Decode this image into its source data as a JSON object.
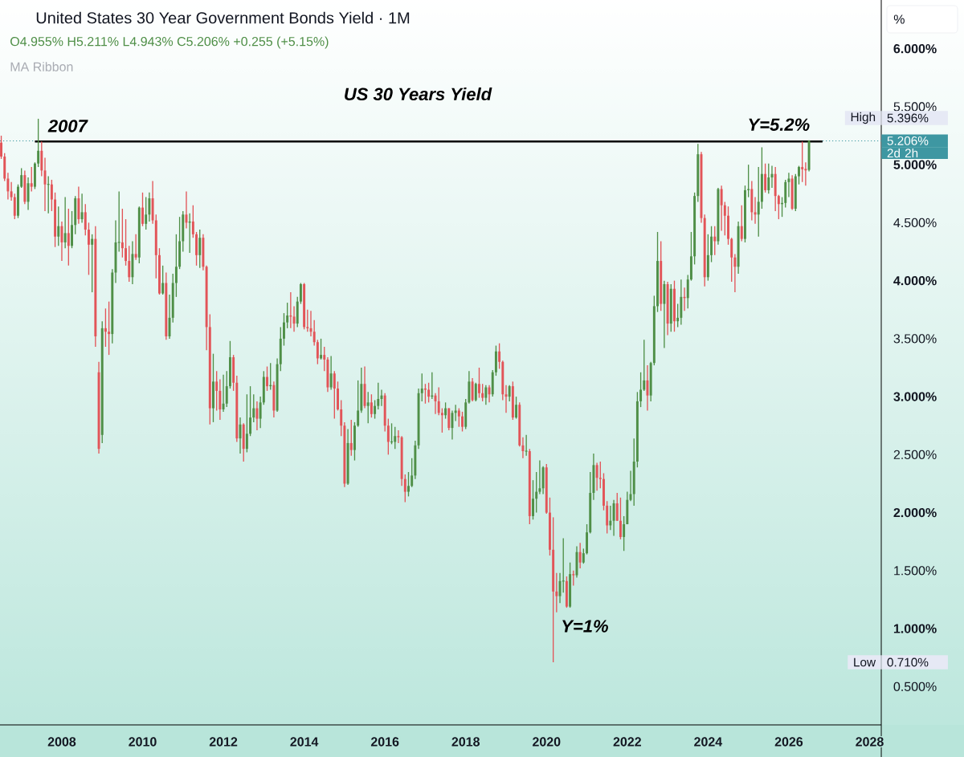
{
  "chart_data": {
    "type": "candlestick",
    "title": "United States 30 Year Government Bonds Yield · 1M",
    "subtitle": "US 30 Years Yield",
    "ylabel": "%",
    "annotations": [
      "O4.955% H5.211% L4.943% C5.206% +0.255 (+5.15%)",
      "MA Ribbon",
      {
        "text": "2007",
        "x": "2007-06",
        "y": 5.396
      },
      {
        "text": "Y=5.2%",
        "x": "2025-10",
        "y": 5.2
      },
      "Y=1%",
      "High",
      "5.396%",
      "Low",
      "0.710%",
      "2d 2h"
    ],
    "xlim": [
      "2006-06-20",
      "2028-04-15"
    ],
    "ylim": [
      0.17,
      6.42
    ],
    "xticks": [
      "2008",
      "2010",
      "2012",
      "2014",
      "2016",
      "2018",
      "2020",
      "2022",
      "2024",
      "2026",
      "2028"
    ],
    "yticks": [
      {
        "value": 0.5,
        "label": "0.500%"
      },
      {
        "value": 1,
        "label": "1.000%"
      },
      {
        "value": 1.5,
        "label": "1.500%"
      },
      {
        "value": 2,
        "label": "2.000%"
      },
      {
        "value": 2.5,
        "label": "2.500%"
      },
      {
        "value": 3,
        "label": "3.000%"
      },
      {
        "value": 3.5,
        "label": "3.500%"
      },
      {
        "value": 4,
        "label": "4.000%"
      },
      {
        "value": 4.5,
        "label": "4.500%"
      },
      {
        "value": 5,
        "label": "5.000%"
      },
      {
        "value": 5.5,
        "label": "5.500%"
      },
      {
        "value": 6,
        "label": "6.000%"
      }
    ],
    "ref_lines": [
      {
        "axis": "y",
        "value": 5.206,
        "label": "5.206%",
        "color": "#3e97a2",
        "line_style": "dotted"
      }
    ],
    "series": [
      {
        "x": [
          "2006-07",
          "2006-08",
          "2006-09",
          "2006-10",
          "2006-11",
          "2006-12",
          "2007-01",
          "2007-02",
          "2007-03",
          "2007-04",
          "2007-05",
          "2007-06",
          "2007-07",
          "2007-08",
          "2007-09",
          "2007-10",
          "2007-11",
          "2007-12",
          "2008-01",
          "2008-02",
          "2008-03",
          "2008-04",
          "2008-05",
          "2008-06",
          "2008-07",
          "2008-08",
          "2008-09",
          "2008-10",
          "2008-11",
          "2008-12",
          "2009-01",
          "2009-02",
          "2009-03",
          "2009-04",
          "2009-05",
          "2009-06",
          "2009-07",
          "2009-08",
          "2009-09",
          "2009-10",
          "2009-11",
          "2009-12",
          "2010-01",
          "2010-02",
          "2010-03",
          "2010-04",
          "2010-05",
          "2010-06",
          "2010-07",
          "2010-08",
          "2010-09",
          "2010-10",
          "2010-11",
          "2010-12",
          "2011-01",
          "2011-02",
          "2011-03",
          "2011-04",
          "2011-05",
          "2011-06",
          "2011-07",
          "2011-08",
          "2011-09",
          "2011-10",
          "2011-11",
          "2011-12",
          "2012-01",
          "2012-02",
          "2012-03",
          "2012-04",
          "2012-05",
          "2012-06",
          "2012-07",
          "2012-08",
          "2012-09",
          "2012-10",
          "2012-11",
          "2012-12",
          "2013-01",
          "2013-02",
          "2013-03",
          "2013-04",
          "2013-05",
          "2013-06",
          "2013-07",
          "2013-08",
          "2013-09",
          "2013-10",
          "2013-11",
          "2013-12",
          "2014-01",
          "2014-02",
          "2014-03",
          "2014-04",
          "2014-05",
          "2014-06",
          "2014-07",
          "2014-08",
          "2014-09",
          "2014-10",
          "2014-11",
          "2014-12",
          "2015-01",
          "2015-02",
          "2015-03",
          "2015-04",
          "2015-05",
          "2015-06",
          "2015-07",
          "2015-08",
          "2015-09",
          "2015-10",
          "2015-11",
          "2015-12",
          "2016-01",
          "2016-02",
          "2016-03",
          "2016-04",
          "2016-05",
          "2016-06",
          "2016-07",
          "2016-08",
          "2016-09",
          "2016-10",
          "2016-11",
          "2016-12",
          "2017-01",
          "2017-02",
          "2017-03",
          "2017-04",
          "2017-05",
          "2017-06",
          "2017-07",
          "2017-08",
          "2017-09",
          "2017-10",
          "2017-11",
          "2017-12",
          "2018-01",
          "2018-02",
          "2018-03",
          "2018-04",
          "2018-05",
          "2018-06",
          "2018-07",
          "2018-08",
          "2018-09",
          "2018-10",
          "2018-11",
          "2018-12",
          "2019-01",
          "2019-02",
          "2019-03",
          "2019-04",
          "2019-05",
          "2019-06",
          "2019-07",
          "2019-08",
          "2019-09",
          "2019-10",
          "2019-11",
          "2019-12",
          "2020-01",
          "2020-02",
          "2020-03",
          "2020-04",
          "2020-05",
          "2020-06",
          "2020-07",
          "2020-08",
          "2020-09",
          "2020-10",
          "2020-11",
          "2020-12",
          "2021-01",
          "2021-02",
          "2021-03",
          "2021-04",
          "2021-05",
          "2021-06",
          "2021-07",
          "2021-08",
          "2021-09",
          "2021-10",
          "2021-11",
          "2021-12",
          "2022-01",
          "2022-02",
          "2022-03",
          "2022-04",
          "2022-05",
          "2022-06",
          "2022-07",
          "2022-08",
          "2022-09",
          "2022-10",
          "2022-11",
          "2022-12",
          "2023-01",
          "2023-02",
          "2023-03",
          "2023-04",
          "2023-05",
          "2023-06",
          "2023-07",
          "2023-08",
          "2023-09",
          "2023-10",
          "2023-11",
          "2023-12",
          "2024-01",
          "2024-02",
          "2024-03",
          "2024-04",
          "2024-05",
          "2024-06",
          "2024-07",
          "2024-08",
          "2024-09",
          "2024-10",
          "2024-11",
          "2024-12",
          "2025-01",
          "2025-02",
          "2025-03",
          "2025-04",
          "2025-05",
          "2025-06",
          "2025-07",
          "2025-08",
          "2025-09",
          "2025-10",
          "2025-11",
          "2025-12",
          "2026-01",
          "2026-02",
          "2026-03",
          "2026-04",
          "2026-05",
          "2026-06",
          "2026-07"
        ],
        "ohlc": [
          [
            5.19,
            5.25,
            5.05,
            5.07
          ],
          [
            5.07,
            5.1,
            4.86,
            4.88
          ],
          [
            4.88,
            4.93,
            4.7,
            4.77
          ],
          [
            4.77,
            4.85,
            4.69,
            4.72
          ],
          [
            4.72,
            4.75,
            4.53,
            4.56
          ],
          [
            4.56,
            4.83,
            4.54,
            4.81
          ],
          [
            4.81,
            4.97,
            4.8,
            4.91
          ],
          [
            4.91,
            4.95,
            4.66,
            4.68
          ],
          [
            4.68,
            4.89,
            4.61,
            4.84
          ],
          [
            4.84,
            4.98,
            4.77,
            4.81
          ],
          [
            4.81,
            5.02,
            4.79,
            5.01
          ],
          [
            5.01,
            5.396,
            4.98,
            5.12
          ],
          [
            5.12,
            5.2,
            4.9,
            4.95
          ],
          [
            4.95,
            5.06,
            4.6,
            4.83
          ],
          [
            4.83,
            4.9,
            4.58,
            4.83
          ],
          [
            4.83,
            4.87,
            4.6,
            4.7
          ],
          [
            4.7,
            4.76,
            4.29,
            4.38
          ],
          [
            4.38,
            4.64,
            4.3,
            4.47
          ],
          [
            4.47,
            4.51,
            4.17,
            4.33
          ],
          [
            4.33,
            4.72,
            4.28,
            4.41
          ],
          [
            4.41,
            4.62,
            4.13,
            4.3
          ],
          [
            4.3,
            4.6,
            4.28,
            4.48
          ],
          [
            4.48,
            4.73,
            4.4,
            4.71
          ],
          [
            4.71,
            4.81,
            4.49,
            4.53
          ],
          [
            4.53,
            4.75,
            4.5,
            4.59
          ],
          [
            4.59,
            4.66,
            4.39,
            4.44
          ],
          [
            4.44,
            4.5,
            4.05,
            4.31
          ],
          [
            4.31,
            4.4,
            3.9,
            4.36
          ],
          [
            4.36,
            4.47,
            3.43,
            3.52
          ],
          [
            3.21,
            3.3,
            2.51,
            2.55
          ],
          [
            2.67,
            3.65,
            2.6,
            3.59
          ],
          [
            3.59,
            3.76,
            3.43,
            3.56
          ],
          [
            3.56,
            3.82,
            3.36,
            3.54
          ],
          [
            3.54,
            4.1,
            3.46,
            4.07
          ],
          [
            4.07,
            4.52,
            3.98,
            4.33
          ],
          [
            4.33,
            4.77,
            4.25,
            4.33
          ],
          [
            4.33,
            4.62,
            4.2,
            4.28
          ],
          [
            4.28,
            4.53,
            4.13,
            4.17
          ],
          [
            4.17,
            4.3,
            3.99,
            4.03
          ],
          [
            4.03,
            4.34,
            3.97,
            4.23
          ],
          [
            4.23,
            4.4,
            4.18,
            4.2
          ],
          [
            4.2,
            4.64,
            4.15,
            4.63
          ],
          [
            4.63,
            4.76,
            4.47,
            4.49
          ],
          [
            4.49,
            4.72,
            4.44,
            4.57
          ],
          [
            4.57,
            4.76,
            4.51,
            4.71
          ],
          [
            4.71,
            4.86,
            4.49,
            4.52
          ],
          [
            4.52,
            4.57,
            4.02,
            4.22
          ],
          [
            4.22,
            4.28,
            3.88,
            3.89
          ],
          [
            3.89,
            4.13,
            3.88,
            3.98
          ],
          [
            3.98,
            4.07,
            3.49,
            3.52
          ],
          [
            3.52,
            3.88,
            3.5,
            3.68
          ],
          [
            3.68,
            4.06,
            3.64,
            3.98
          ],
          [
            3.98,
            4.4,
            3.86,
            4.12
          ],
          [
            4.12,
            4.55,
            4.1,
            4.34
          ],
          [
            4.34,
            4.6,
            4.25,
            4.57
          ],
          [
            4.57,
            4.77,
            4.45,
            4.5
          ],
          [
            4.5,
            4.58,
            4.24,
            4.51
          ],
          [
            4.51,
            4.65,
            4.37,
            4.4
          ],
          [
            4.4,
            4.42,
            4.13,
            4.22
          ],
          [
            4.22,
            4.44,
            4.11,
            4.37
          ],
          [
            4.37,
            4.4,
            4.09,
            4.12
          ],
          [
            4.12,
            4.13,
            3.4,
            3.6
          ],
          [
            3.6,
            3.71,
            2.76,
            2.9
          ],
          [
            2.9,
            3.37,
            2.78,
            3.13
          ],
          [
            3.13,
            3.22,
            2.88,
            3.05
          ],
          [
            3.05,
            3.15,
            2.8,
            2.89
          ],
          [
            2.89,
            3.19,
            2.87,
            2.94
          ],
          [
            2.94,
            3.22,
            2.91,
            3.09
          ],
          [
            3.09,
            3.48,
            3.07,
            3.34
          ],
          [
            3.34,
            3.36,
            3.05,
            3.12
          ],
          [
            3.12,
            3.18,
            2.61,
            2.64
          ],
          [
            2.64,
            2.82,
            2.51,
            2.76
          ],
          [
            2.76,
            2.77,
            2.44,
            2.55
          ],
          [
            2.55,
            3.02,
            2.52,
            2.68
          ],
          [
            2.68,
            3.09,
            2.66,
            2.82
          ],
          [
            2.82,
            3.02,
            2.78,
            2.9
          ],
          [
            2.9,
            2.96,
            2.71,
            2.81
          ],
          [
            2.81,
            3.0,
            2.73,
            2.95
          ],
          [
            2.95,
            3.22,
            2.93,
            3.17
          ],
          [
            3.17,
            3.26,
            3.05,
            3.09
          ],
          [
            3.09,
            3.29,
            3.06,
            3.1
          ],
          [
            3.1,
            3.13,
            2.82,
            2.88
          ],
          [
            2.88,
            3.33,
            2.87,
            3.28
          ],
          [
            3.28,
            3.6,
            3.22,
            3.5
          ],
          [
            3.5,
            3.72,
            3.44,
            3.64
          ],
          [
            3.64,
            3.81,
            3.59,
            3.7
          ],
          [
            3.7,
            3.9,
            3.59,
            3.69
          ],
          [
            3.69,
            3.78,
            3.56,
            3.63
          ],
          [
            3.63,
            3.86,
            3.6,
            3.82
          ],
          [
            3.82,
            3.98,
            3.8,
            3.97
          ],
          [
            3.97,
            3.98,
            3.58,
            3.6
          ],
          [
            3.6,
            3.75,
            3.56,
            3.59
          ],
          [
            3.59,
            3.74,
            3.52,
            3.56
          ],
          [
            3.56,
            3.66,
            3.44,
            3.47
          ],
          [
            3.47,
            3.49,
            3.28,
            3.33
          ],
          [
            3.33,
            3.5,
            3.32,
            3.36
          ],
          [
            3.36,
            3.43,
            3.22,
            3.32
          ],
          [
            3.32,
            3.34,
            3.04,
            3.08
          ],
          [
            3.08,
            3.35,
            3.06,
            3.2
          ],
          [
            3.2,
            3.22,
            2.81,
            3.07
          ],
          [
            3.07,
            3.13,
            2.88,
            2.89
          ],
          [
            2.89,
            2.97,
            2.66,
            2.75
          ],
          [
            2.75,
            2.78,
            2.22,
            2.25
          ],
          [
            2.25,
            2.72,
            2.24,
            2.6
          ],
          [
            2.6,
            2.8,
            2.49,
            2.54
          ],
          [
            2.54,
            2.78,
            2.45,
            2.75
          ],
          [
            2.75,
            3.14,
            2.74,
            2.88
          ],
          [
            2.88,
            3.25,
            2.86,
            3.11
          ],
          [
            3.11,
            3.26,
            2.9,
            2.92
          ],
          [
            2.92,
            3.04,
            2.77,
            2.95
          ],
          [
            2.95,
            3.02,
            2.82,
            2.85
          ],
          [
            2.85,
            2.97,
            2.81,
            2.92
          ],
          [
            2.92,
            3.12,
            2.89,
            2.98
          ],
          [
            2.98,
            3.06,
            2.92,
            3.01
          ],
          [
            3.01,
            3.03,
            2.7,
            2.75
          ],
          [
            2.75,
            2.81,
            2.5,
            2.61
          ],
          [
            2.61,
            2.77,
            2.59,
            2.61
          ],
          [
            2.61,
            2.74,
            2.55,
            2.66
          ],
          [
            2.66,
            2.71,
            2.6,
            2.65
          ],
          [
            2.65,
            2.66,
            2.23,
            2.29
          ],
          [
            2.29,
            2.33,
            2.09,
            2.18
          ],
          [
            2.18,
            2.35,
            2.14,
            2.23
          ],
          [
            2.23,
            2.47,
            2.22,
            2.32
          ],
          [
            2.32,
            2.62,
            2.29,
            2.58
          ],
          [
            2.58,
            3.07,
            2.55,
            3.03
          ],
          [
            3.03,
            3.2,
            2.96,
            3.07
          ],
          [
            3.07,
            3.11,
            2.94,
            3.06
          ],
          [
            3.06,
            3.12,
            2.95,
            3.0
          ],
          [
            3.0,
            3.21,
            2.98,
            3.01
          ],
          [
            3.01,
            3.03,
            2.85,
            2.96
          ],
          [
            2.96,
            3.08,
            2.84,
            2.86
          ],
          [
            2.86,
            2.9,
            2.69,
            2.84
          ],
          [
            2.84,
            2.95,
            2.81,
            2.9
          ],
          [
            2.9,
            2.9,
            2.71,
            2.73
          ],
          [
            2.73,
            2.88,
            2.63,
            2.86
          ],
          [
            2.86,
            2.93,
            2.79,
            2.88
          ],
          [
            2.88,
            2.9,
            2.74,
            2.83
          ],
          [
            2.83,
            2.87,
            2.7,
            2.74
          ],
          [
            2.74,
            2.98,
            2.72,
            2.95
          ],
          [
            2.95,
            3.22,
            2.94,
            3.13
          ],
          [
            3.13,
            3.16,
            2.96,
            2.97
          ],
          [
            2.97,
            3.12,
            2.96,
            3.11
          ],
          [
            3.11,
            3.25,
            2.99,
            3.03
          ],
          [
            3.03,
            3.11,
            2.96,
            2.99
          ],
          [
            2.99,
            3.1,
            2.93,
            3.08
          ],
          [
            3.08,
            3.1,
            2.95,
            3.02
          ],
          [
            3.02,
            3.23,
            3.0,
            3.21
          ],
          [
            3.21,
            3.44,
            3.18,
            3.39
          ],
          [
            3.39,
            3.46,
            3.24,
            3.3
          ],
          [
            3.3,
            3.31,
            2.97,
            3.02
          ],
          [
            3.02,
            3.1,
            2.86,
            3.0
          ],
          [
            3.0,
            3.1,
            2.96,
            3.09
          ],
          [
            3.09,
            3.13,
            2.8,
            2.82
          ],
          [
            2.82,
            3.0,
            2.81,
            2.93
          ],
          [
            2.93,
            2.95,
            2.57,
            2.58
          ],
          [
            2.58,
            2.65,
            2.47,
            2.53
          ],
          [
            2.53,
            2.67,
            2.49,
            2.53
          ],
          [
            2.53,
            2.55,
            1.9,
            1.97
          ],
          [
            1.97,
            2.28,
            1.94,
            2.12
          ],
          [
            2.12,
            2.35,
            2.0,
            2.18
          ],
          [
            2.18,
            2.45,
            2.16,
            2.21
          ],
          [
            2.21,
            2.4,
            2.16,
            2.39
          ],
          [
            2.39,
            2.42,
            1.99,
            2.0
          ],
          [
            2.0,
            2.13,
            1.63,
            1.68
          ],
          [
            1.68,
            1.96,
            0.71,
            1.32
          ],
          [
            1.32,
            1.48,
            1.14,
            1.28
          ],
          [
            1.28,
            1.48,
            1.22,
            1.41
          ],
          [
            1.41,
            1.78,
            1.31,
            1.41
          ],
          [
            1.41,
            1.45,
            1.18,
            1.19
          ],
          [
            1.19,
            1.57,
            1.18,
            1.47
          ],
          [
            1.47,
            1.5,
            1.37,
            1.46
          ],
          [
            1.46,
            1.71,
            1.44,
            1.66
          ],
          [
            1.66,
            1.74,
            1.52,
            1.57
          ],
          [
            1.57,
            1.69,
            1.56,
            1.65
          ],
          [
            1.65,
            1.9,
            1.64,
            1.83
          ],
          [
            1.83,
            2.35,
            1.82,
            2.17
          ],
          [
            2.17,
            2.51,
            2.11,
            2.41
          ],
          [
            2.41,
            2.43,
            2.19,
            2.3
          ],
          [
            2.3,
            2.44,
            2.21,
            2.29
          ],
          [
            2.29,
            2.34,
            2.02,
            2.06
          ],
          [
            2.06,
            2.1,
            1.82,
            1.89
          ],
          [
            1.89,
            2.06,
            1.85,
            1.93
          ],
          [
            1.93,
            2.11,
            1.8,
            2.08
          ],
          [
            2.08,
            2.17,
            1.93,
            1.93
          ],
          [
            1.93,
            2.13,
            1.77,
            1.79
          ],
          [
            1.79,
            1.97,
            1.67,
            1.9
          ],
          [
            1.9,
            2.18,
            1.9,
            2.11
          ],
          [
            2.11,
            2.36,
            2.1,
            2.16
          ],
          [
            2.16,
            2.64,
            2.06,
            2.44
          ],
          [
            2.44,
            3.04,
            2.39,
            2.96
          ],
          [
            2.96,
            3.21,
            2.91,
            3.06
          ],
          [
            3.06,
            3.49,
            3.05,
            3.14
          ],
          [
            3.14,
            3.27,
            2.88,
            3.01
          ],
          [
            3.01,
            3.3,
            2.96,
            3.29
          ],
          [
            3.29,
            3.87,
            3.27,
            3.78
          ],
          [
            3.78,
            4.42,
            3.73,
            4.17
          ],
          [
            4.17,
            4.34,
            3.74,
            3.8
          ],
          [
            3.8,
            4.0,
            3.42,
            3.97
          ],
          [
            3.97,
            3.99,
            3.53,
            3.63
          ],
          [
            3.63,
            3.97,
            3.56,
            3.93
          ],
          [
            3.93,
            4.0,
            3.56,
            3.65
          ],
          [
            3.65,
            3.8,
            3.6,
            3.68
          ],
          [
            3.68,
            4.01,
            3.62,
            3.86
          ],
          [
            3.86,
            3.94,
            3.74,
            3.85
          ],
          [
            3.85,
            4.05,
            3.76,
            4.01
          ],
          [
            4.01,
            4.42,
            4.0,
            4.21
          ],
          [
            4.21,
            4.76,
            4.14,
            4.73
          ],
          [
            4.73,
            5.18,
            4.68,
            5.09
          ],
          [
            5.09,
            5.11,
            4.5,
            4.54
          ],
          [
            4.54,
            4.57,
            3.95,
            4.03
          ],
          [
            4.03,
            4.4,
            4.0,
            4.22
          ],
          [
            4.22,
            4.47,
            4.16,
            4.38
          ],
          [
            4.38,
            4.47,
            4.22,
            4.34
          ],
          [
            4.34,
            4.8,
            4.31,
            4.79
          ],
          [
            4.79,
            4.82,
            4.43,
            4.65
          ],
          [
            4.65,
            4.68,
            4.39,
            4.56
          ],
          [
            4.56,
            4.64,
            4.31,
            4.36
          ],
          [
            4.36,
            4.37,
            3.99,
            4.2
          ],
          [
            4.2,
            4.23,
            3.9,
            4.12
          ],
          [
            4.12,
            4.51,
            4.06,
            4.47
          ],
          [
            4.47,
            4.65,
            4.34,
            4.36
          ],
          [
            4.36,
            4.82,
            4.33,
            4.78
          ],
          [
            4.78,
            5.0,
            4.72,
            4.79
          ],
          [
            4.79,
            4.86,
            4.52,
            4.59
          ],
          [
            4.59,
            4.72,
            4.49,
            4.57
          ],
          [
            4.57,
            4.98,
            4.38,
            4.68
          ],
          [
            4.68,
            5.15,
            4.62,
            4.92
          ],
          [
            4.92,
            5.01,
            4.76,
            4.78
          ],
          [
            4.78,
            5.01,
            4.75,
            4.89
          ],
          [
            4.89,
            4.99,
            4.8,
            4.92
          ],
          [
            4.92,
            4.98,
            4.6,
            4.73
          ],
          [
            4.73,
            4.74,
            4.53,
            4.66
          ],
          [
            4.66,
            4.72,
            4.55,
            4.67
          ],
          [
            4.67,
            4.87,
            4.63,
            4.85
          ],
          [
            4.85,
            4.93,
            4.72,
            4.88
          ],
          [
            4.88,
            4.91,
            4.61,
            4.62
          ],
          [
            4.62,
            4.92,
            4.6,
            4.9
          ],
          [
            4.9,
            4.99,
            4.83,
            4.98
          ],
          [
            4.98,
            5.2,
            4.85,
            4.96
          ],
          [
            4.96,
            5.02,
            4.82,
            4.955
          ],
          [
            4.955,
            5.211,
            4.943,
            5.206
          ]
        ],
        "colors": [
          "#e25458",
          "#e25458",
          "#e25458",
          "#e25458",
          "#e25458",
          "#4f8f47",
          "#4f8f47",
          "#e25458",
          "#4f8f47",
          "#e25458",
          "#4f8f47",
          "#4f8f47",
          "#e25458",
          "#e25458",
          "#4f8f47",
          "#e25458",
          "#e25458",
          "#4f8f47",
          "#e25458",
          "#4f8f47",
          "#e25458",
          "#4f8f47",
          "#4f8f47",
          "#e25458",
          "#4f8f47",
          "#e25458",
          "#e25458",
          "#4f8f47",
          "#e25458",
          "#e25458",
          "#4f8f47",
          "#e25458",
          "#e25458",
          "#4f8f47",
          "#4f8f47",
          "#4f8f47",
          "#e25458",
          "#e25458",
          "#e25458",
          "#4f8f47",
          "#e25458",
          "#4f8f47",
          "#e25458",
          "#4f8f47",
          "#4f8f47",
          "#e25458",
          "#e25458",
          "#e25458",
          "#4f8f47",
          "#e25458",
          "#4f8f47",
          "#4f8f47",
          "#4f8f47",
          "#4f8f47",
          "#4f8f47",
          "#e25458",
          "#4f8f47",
          "#e25458",
          "#e25458",
          "#4f8f47",
          "#e25458",
          "#e25458",
          "#e25458",
          "#4f8f47",
          "#e25458",
          "#e25458",
          "#4f8f47",
          "#4f8f47",
          "#4f8f47",
          "#e25458",
          "#e25458",
          "#4f8f47",
          "#e25458",
          "#4f8f47",
          "#4f8f47",
          "#4f8f47",
          "#e25458",
          "#4f8f47",
          "#4f8f47",
          "#e25458",
          "#4f8f47",
          "#e25458",
          "#4f8f47",
          "#4f8f47",
          "#4f8f47",
          "#4f8f47",
          "#e25458",
          "#e25458",
          "#4f8f47",
          "#4f8f47",
          "#e25458",
          "#e25458",
          "#e25458",
          "#e25458",
          "#e25458",
          "#4f8f47",
          "#e25458",
          "#e25458",
          "#4f8f47",
          "#e25458",
          "#e25458",
          "#e25458",
          "#e25458",
          "#4f8f47",
          "#e25458",
          "#4f8f47",
          "#4f8f47",
          "#4f8f47",
          "#e25458",
          "#4f8f47",
          "#e25458",
          "#4f8f47",
          "#4f8f47",
          "#4f8f47",
          "#e25458",
          "#e25458",
          "#4f8f47",
          "#4f8f47",
          "#e25458",
          "#e25458",
          "#e25458",
          "#4f8f47",
          "#4f8f47",
          "#4f8f47",
          "#4f8f47",
          "#4f8f47",
          "#e25458",
          "#e25458",
          "#4f8f47",
          "#e25458",
          "#e25458",
          "#e25458",
          "#4f8f47",
          "#e25458",
          "#4f8f47",
          "#4f8f47",
          "#e25458",
          "#e25458",
          "#4f8f47",
          "#4f8f47",
          "#e25458",
          "#4f8f47",
          "#e25458",
          "#e25458",
          "#4f8f47",
          "#e25458",
          "#4f8f47",
          "#4f8f47",
          "#e25458",
          "#e25458",
          "#e25458",
          "#4f8f47",
          "#e25458",
          "#4f8f47",
          "#e25458",
          "#e25458",
          "#4f8f47",
          "#e25458",
          "#4f8f47",
          "#4f8f47",
          "#4f8f47",
          "#4f8f47",
          "#e25458",
          "#e25458",
          "#e25458",
          "#e25458",
          "#4f8f47",
          "#4f8f47",
          "#e25458",
          "#4f8f47",
          "#e25458",
          "#4f8f47",
          "#e25458",
          "#4f8f47",
          "#4f8f47",
          "#4f8f47",
          "#4f8f47",
          "#e25458",
          "#e25458",
          "#e25458",
          "#e25458",
          "#4f8f47",
          "#4f8f47",
          "#e25458",
          "#e25458",
          "#4f8f47",
          "#4f8f47",
          "#4f8f47",
          "#4f8f47",
          "#4f8f47",
          "#4f8f47",
          "#4f8f47",
          "#e25458",
          "#4f8f47",
          "#4f8f47",
          "#4f8f47",
          "#e25458",
          "#4f8f47",
          "#e25458",
          "#4f8f47",
          "#e25458",
          "#4f8f47",
          "#4f8f47",
          "#e25458",
          "#4f8f47",
          "#4f8f47",
          "#4f8f47",
          "#4f8f47",
          "#e25458",
          "#e25458",
          "#4f8f47",
          "#4f8f47",
          "#e25458",
          "#4f8f47",
          "#e25458",
          "#e25458",
          "#e25458",
          "#e25458",
          "#e25458",
          "#4f8f47",
          "#e25458",
          "#4f8f47",
          "#4f8f47",
          "#e25458",
          "#e25458",
          "#4f8f47",
          "#4f8f47",
          "#e25458",
          "#4f8f47",
          "#4f8f47",
          "#e25458",
          "#e25458",
          "#4f8f47",
          "#4f8f47",
          "#4f8f47",
          "#e25458",
          "#4f8f47",
          "#4f8f47",
          "#e25458",
          "#e25458",
          "#4f8f47"
        ]
      },
      {
        "type": "line",
        "x": [
          "2007-05",
          "2026-11"
        ],
        "values": [
          5.2,
          5.2
        ],
        "color": "#000000"
      }
    ]
  }
}
